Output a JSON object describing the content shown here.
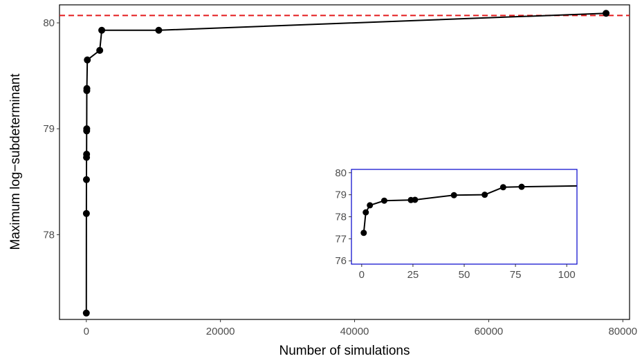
{
  "chart_data": [
    {
      "id": "main",
      "type": "line",
      "xlabel": "Number of simulations",
      "ylabel": "Maximum log−subdeterminant",
      "xlim": [
        -4000,
        81000
      ],
      "ylim": [
        77.2,
        80.17
      ],
      "x_ticks": [
        0,
        20000,
        40000,
        60000,
        80000
      ],
      "x_tick_labels": [
        "0",
        "20000",
        "40000",
        "60000",
        "80000"
      ],
      "y_ticks": [
        78,
        79,
        80
      ],
      "y_tick_labels": [
        "78",
        "79",
        "80"
      ],
      "grid": false,
      "reference_line": {
        "y": 80.07,
        "style": "dashed",
        "color": "#e41a1c"
      },
      "series": [
        {
          "color": "#000000",
          "points": [
            {
              "x": 0,
              "y": 77.26
            },
            {
              "x": 10,
              "y": 78.2
            },
            {
              "x": 20,
              "y": 78.52
            },
            {
              "x": 30,
              "y": 78.73
            },
            {
              "x": 40,
              "y": 78.76
            },
            {
              "x": 50,
              "y": 78.98
            },
            {
              "x": 60,
              "y": 79.0
            },
            {
              "x": 70,
              "y": 79.36
            },
            {
              "x": 80,
              "y": 79.38
            },
            {
              "x": 150,
              "y": 79.65
            },
            {
              "x": 2000,
              "y": 79.74
            },
            {
              "x": 2300,
              "y": 79.93
            },
            {
              "x": 10800,
              "y": 79.93
            },
            {
              "x": 77500,
              "y": 80.09
            }
          ]
        }
      ]
    },
    {
      "id": "inset",
      "type": "line",
      "xlim": [
        -5,
        105
      ],
      "ylim": [
        75.85,
        80.15
      ],
      "x_ticks": [
        0,
        25,
        50,
        75,
        100
      ],
      "x_tick_labels": [
        "0",
        "25",
        "50",
        "75",
        "100"
      ],
      "y_ticks": [
        76,
        77,
        78,
        79,
        80
      ],
      "y_tick_labels": [
        "76",
        "77",
        "78",
        "79",
        "80"
      ],
      "frame_color": "#0000cc",
      "grid": false,
      "series": [
        {
          "color": "#000000",
          "points": [
            {
              "x": 1,
              "y": 77.27
            },
            {
              "x": 2,
              "y": 78.2
            },
            {
              "x": 4,
              "y": 78.52
            },
            {
              "x": 11,
              "y": 78.73
            },
            {
              "x": 24,
              "y": 78.76
            },
            {
              "x": 26,
              "y": 78.77
            },
            {
              "x": 45,
              "y": 78.98
            },
            {
              "x": 60,
              "y": 79.0
            },
            {
              "x": 69,
              "y": 79.34
            },
            {
              "x": 78,
              "y": 79.36
            },
            {
              "x": 105,
              "y": 79.4
            }
          ]
        }
      ]
    }
  ]
}
